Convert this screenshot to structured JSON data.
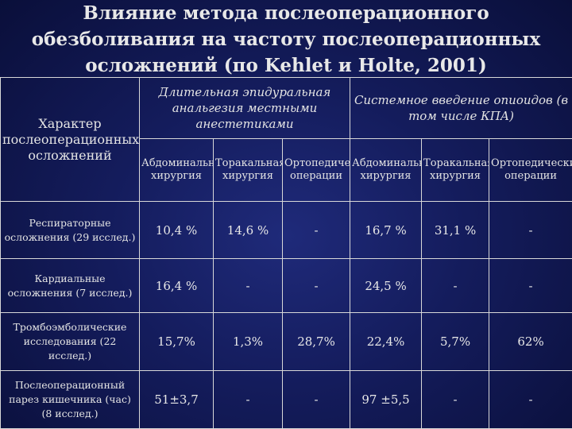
{
  "slide": {
    "title_lines": [
      "Влияние метода послеоперационного",
      "обезболивания на частоту послеоперационных",
      "осложнений (по Kehlet и Holte, 2001)"
    ]
  },
  "table": {
    "corner_header": "Характер послеоперационных осложнений",
    "groups": [
      "Длительная эпидуральная анальгезия местными анестетиками",
      "Системное введение опиоидов (в том числе КПА)"
    ],
    "subheaders": [
      "Абдоминальная хирургия",
      "Торакальная хирургия",
      "Ортопедические операции",
      "Абдоминальная хирургия",
      "Торакальная хирургия",
      "Ортопедические операции"
    ],
    "rows": [
      {
        "label": "Респираторные осложнения (29 исслед.)",
        "values": [
          "10,4 %",
          "14,6 %",
          "-",
          "16,7 %",
          "31,1 %",
          "-"
        ]
      },
      {
        "label": "Кардиальные осложнения (7 исслед.)",
        "values": [
          "16,4 %",
          "-",
          "-",
          "24,5 %",
          "-",
          "-"
        ]
      },
      {
        "label": "Тромбоэмболические исследования (22 исслед.)",
        "values": [
          "15,7%",
          "1,3%",
          "28,7%",
          "22,4%",
          "5,7%",
          "62%"
        ]
      },
      {
        "label": "Послеоперационный парез кишечника (час) (8 исслед.)",
        "values": [
          "51±3,7",
          "-",
          "-",
          "97 ±5,5",
          "-",
          "-"
        ]
      }
    ]
  }
}
